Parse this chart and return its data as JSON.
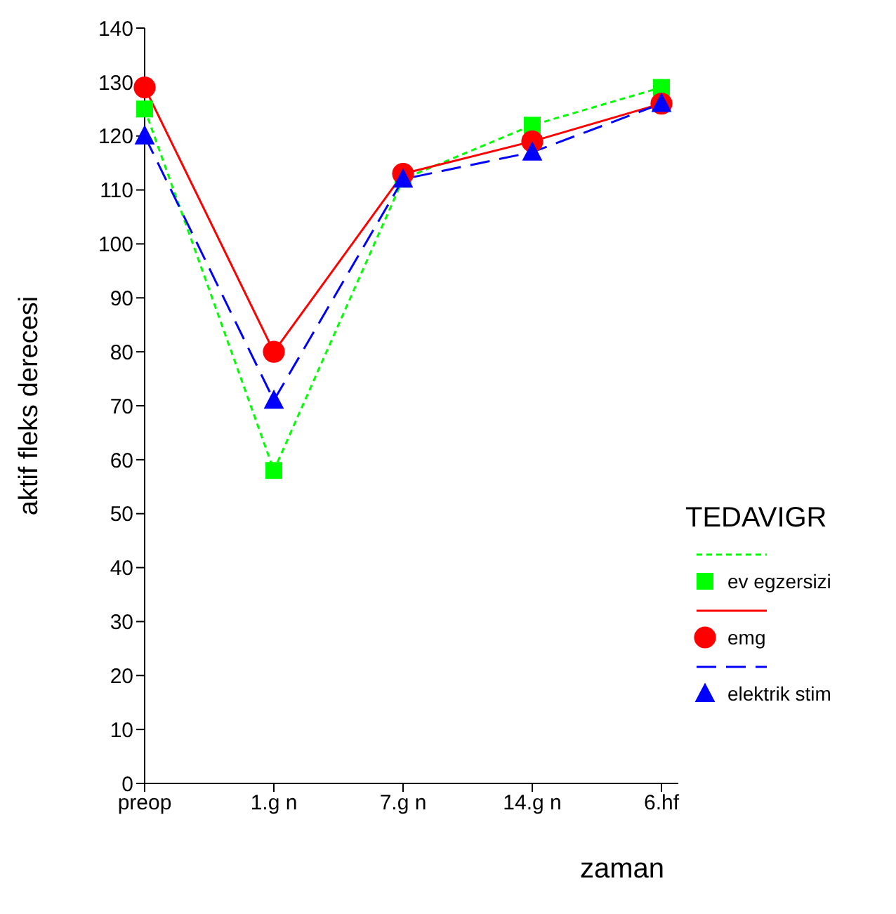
{
  "chart_data": {
    "type": "line",
    "xlabel": "zaman",
    "ylabel": "aktif fleks derecesi",
    "legend_title": "TEDAVIGR",
    "categories": [
      "preop",
      "1.g  n",
      "7.g  n",
      "14.g  n",
      "6.hf"
    ],
    "series": [
      {
        "name": "ev egzersizi",
        "color": "#00ff00",
        "values": [
          125,
          58,
          112,
          122,
          129
        ],
        "marker": "square",
        "line_style": "dotted"
      },
      {
        "name": "emg",
        "color": "#ff0000",
        "values": [
          129,
          80,
          113,
          119,
          126
        ],
        "marker": "circle",
        "line_style": "solid"
      },
      {
        "name": "elektrik stim",
        "color": "#0000ff",
        "values": [
          120,
          71,
          112,
          117,
          126
        ],
        "marker": "triangle",
        "line_style": "dashed"
      }
    ],
    "ylim": [
      0,
      140
    ],
    "yticks": [
      0,
      10,
      20,
      30,
      40,
      50,
      60,
      70,
      80,
      90,
      100,
      110,
      120,
      130,
      140
    ],
    "grid": false,
    "legend": "right"
  }
}
